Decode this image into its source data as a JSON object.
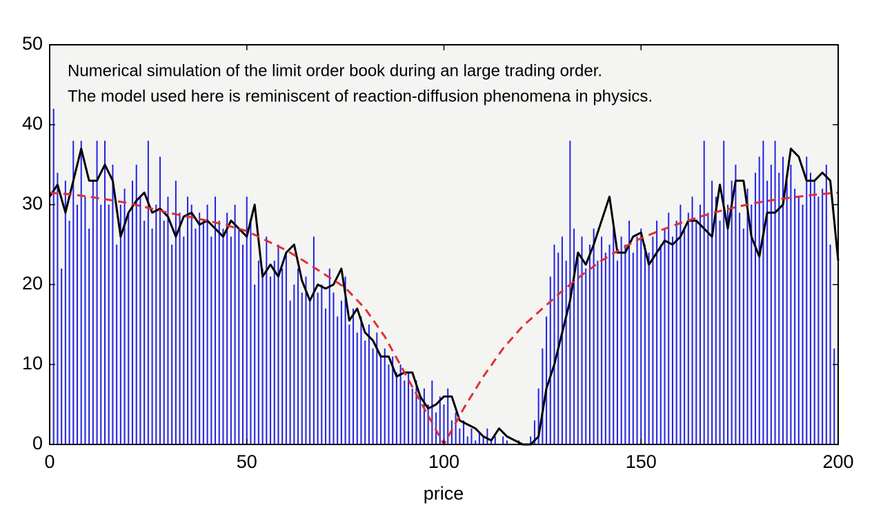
{
  "chart_data": {
    "type": "line",
    "annotation": [
      "Numerical simulation of the limit order book during an large trading order.",
      "The model used here is reminiscent of reaction-diffusion phenomena in physics."
    ],
    "xlabel": "price",
    "xlim": [
      0,
      200
    ],
    "xticks": [
      0,
      50,
      100,
      150,
      200
    ],
    "ylim": [
      0,
      50
    ],
    "yticks": [
      0,
      10,
      20,
      30,
      40,
      50
    ],
    "grid": false,
    "background": "#f4f4f2",
    "series": [
      {
        "style": "stems",
        "color": "#2222e6",
        "x": [
          0,
          1,
          2,
          3,
          4,
          5,
          6,
          7,
          8,
          9,
          10,
          11,
          12,
          13,
          14,
          15,
          16,
          17,
          18,
          19,
          20,
          21,
          22,
          23,
          24,
          25,
          26,
          27,
          28,
          29,
          30,
          31,
          32,
          33,
          34,
          35,
          36,
          37,
          38,
          39,
          40,
          41,
          42,
          43,
          44,
          45,
          46,
          47,
          48,
          49,
          50,
          51,
          52,
          53,
          54,
          55,
          56,
          57,
          58,
          59,
          60,
          61,
          62,
          63,
          64,
          65,
          66,
          67,
          68,
          69,
          70,
          71,
          72,
          73,
          74,
          75,
          76,
          77,
          78,
          79,
          80,
          81,
          82,
          83,
          84,
          85,
          86,
          87,
          88,
          89,
          90,
          91,
          92,
          93,
          94,
          95,
          96,
          97,
          98,
          99,
          100,
          101,
          102,
          103,
          104,
          105,
          106,
          107,
          108,
          109,
          110,
          111,
          112,
          113,
          114,
          115,
          116,
          117,
          118,
          119,
          120,
          121,
          122,
          123,
          124,
          125,
          126,
          127,
          128,
          129,
          130,
          131,
          132,
          133,
          134,
          135,
          136,
          137,
          138,
          139,
          140,
          141,
          142,
          143,
          144,
          145,
          146,
          147,
          148,
          149,
          150,
          151,
          152,
          153,
          154,
          155,
          156,
          157,
          158,
          159,
          160,
          161,
          162,
          163,
          164,
          165,
          166,
          167,
          168,
          169,
          170,
          171,
          172,
          173,
          174,
          175,
          176,
          177,
          178,
          179,
          180,
          181,
          182,
          183,
          184,
          185,
          186,
          187,
          188,
          189,
          190,
          191,
          192,
          193,
          194,
          195,
          196,
          197,
          198,
          199
        ],
        "values": [
          14,
          42,
          34,
          22,
          33,
          28,
          38,
          30,
          38,
          31,
          27,
          33,
          38,
          30,
          38,
          30,
          35,
          25,
          30,
          32,
          29,
          33,
          35,
          31,
          28,
          38,
          27,
          30,
          36,
          28,
          31,
          25,
          33,
          29,
          26,
          31,
          30,
          27,
          29,
          28,
          30,
          26,
          31,
          28,
          27,
          29,
          26,
          30,
          27,
          25,
          31,
          28,
          20,
          23,
          22,
          26,
          21,
          23,
          25,
          22,
          24,
          18,
          20,
          22,
          19,
          21,
          18,
          26,
          19,
          20,
          17,
          22,
          19,
          16,
          18,
          21,
          15,
          17,
          14,
          16,
          13,
          15,
          12,
          14,
          11,
          12,
          10,
          11,
          9,
          10,
          8,
          9,
          7,
          8,
          6,
          7,
          5,
          8,
          4,
          6,
          5,
          7,
          3,
          4,
          2,
          3,
          1,
          2,
          0.5,
          1.5,
          1,
          2,
          0.5,
          1,
          0,
          1,
          0.5,
          0,
          0,
          0.5,
          0,
          0,
          1,
          3,
          7,
          12,
          16,
          21,
          25,
          24,
          26,
          23,
          38,
          27,
          24,
          26,
          22,
          25,
          27,
          23,
          26,
          24,
          25,
          27,
          23,
          26,
          25,
          28,
          24,
          26,
          27,
          25,
          24,
          26,
          28,
          25,
          27,
          29,
          26,
          28,
          30,
          27,
          29,
          31,
          28,
          30,
          38,
          29,
          33,
          31,
          28,
          38,
          30,
          33,
          35,
          29,
          27,
          32,
          30,
          34,
          36,
          38,
          33,
          35,
          38,
          34,
          36,
          33,
          35,
          32,
          31,
          30,
          36,
          34,
          33,
          31,
          32,
          35,
          25,
          12
        ]
      },
      {
        "style": "solid",
        "color": "#000000",
        "x": [
          0,
          2,
          4,
          6,
          8,
          10,
          12,
          14,
          16,
          18,
          20,
          22,
          24,
          26,
          28,
          30,
          32,
          34,
          36,
          38,
          40,
          42,
          44,
          46,
          48,
          50,
          52,
          54,
          56,
          58,
          60,
          62,
          64,
          66,
          68,
          70,
          72,
          74,
          76,
          78,
          80,
          82,
          84,
          86,
          88,
          90,
          92,
          94,
          96,
          98,
          100,
          102,
          104,
          106,
          108,
          110,
          112,
          114,
          116,
          118,
          120,
          122,
          124,
          126,
          128,
          130,
          132,
          134,
          136,
          138,
          140,
          142,
          144,
          146,
          148,
          150,
          152,
          154,
          156,
          158,
          160,
          162,
          164,
          166,
          168,
          170,
          172,
          174,
          176,
          178,
          180,
          182,
          184,
          186,
          188,
          190,
          192,
          194,
          196,
          198,
          200
        ],
        "values": [
          31,
          32.5,
          29,
          33,
          37,
          33,
          33,
          35,
          33,
          26,
          29,
          30.5,
          31.5,
          29,
          29.5,
          28.5,
          26,
          28.5,
          29,
          27.5,
          28,
          27,
          26,
          28,
          27,
          26,
          30,
          21,
          22.5,
          21,
          24,
          25,
          20.5,
          18,
          20,
          19.5,
          20,
          22,
          15.5,
          17,
          14,
          13,
          11,
          11,
          8.5,
          9,
          9,
          6,
          4.5,
          5,
          6,
          6,
          3,
          2.5,
          2,
          1,
          0.5,
          2,
          1,
          0.5,
          0,
          0,
          1,
          7,
          10,
          14,
          18,
          24,
          22.5,
          25,
          28,
          31,
          24,
          24,
          26,
          26.5,
          22.5,
          24,
          25.5,
          25,
          26,
          28,
          28,
          27,
          26,
          32.5,
          27,
          33,
          33,
          26,
          23.5,
          29,
          29,
          30,
          37,
          36,
          33,
          33,
          34,
          33,
          23
        ]
      },
      {
        "style": "dashed",
        "color": "#e03030",
        "x": [
          0,
          5,
          10,
          15,
          20,
          25,
          30,
          35,
          40,
          45,
          50,
          55,
          60,
          65,
          70,
          75,
          80,
          85,
          90,
          95,
          100,
          105,
          110,
          115,
          120,
          125,
          130,
          135,
          140,
          145,
          150,
          155,
          160,
          165,
          170,
          175,
          180,
          185,
          190,
          195,
          200
        ],
        "values": [
          31.5,
          31.3,
          31,
          30.6,
          30.2,
          29.6,
          29,
          28.5,
          28,
          27.4,
          26.7,
          25.5,
          24.3,
          22.8,
          21.2,
          19.6,
          17,
          13.5,
          9,
          4.5,
          0,
          4.5,
          8.5,
          12,
          14.8,
          17,
          19.2,
          21.2,
          23,
          24.5,
          25.8,
          26.8,
          27.7,
          28.5,
          29.2,
          29.8,
          30.3,
          30.7,
          31,
          31.3,
          31.5
        ]
      }
    ]
  }
}
